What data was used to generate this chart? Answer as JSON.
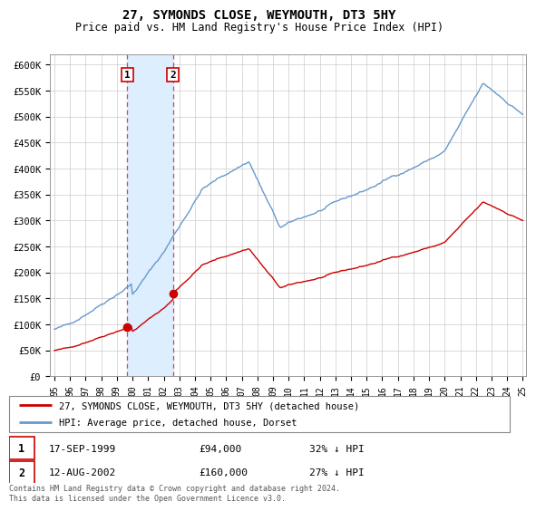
{
  "title": "27, SYMONDS CLOSE, WEYMOUTH, DT3 5HY",
  "subtitle": "Price paid vs. HM Land Registry's House Price Index (HPI)",
  "purchase1_year": 1999,
  "purchase1_month": 9,
  "purchase1_price": 94000,
  "purchase1_date_str": "17-SEP-1999",
  "purchase1_pct": "32% ↓ HPI",
  "purchase2_year": 2002,
  "purchase2_month": 8,
  "purchase2_price": 160000,
  "purchase2_date_str": "12-AUG-2002",
  "purchase2_pct": "27% ↓ HPI",
  "legend_property": "27, SYMONDS CLOSE, WEYMOUTH, DT3 5HY (detached house)",
  "legend_hpi": "HPI: Average price, detached house, Dorset",
  "footer": "Contains HM Land Registry data © Crown copyright and database right 2024.\nThis data is licensed under the Open Government Licence v3.0.",
  "property_color": "#cc0000",
  "hpi_color": "#6699cc",
  "shade_color": "#ddeeff",
  "marker_box_color": "#cc0000",
  "background_color": "#ffffff",
  "grid_color": "#cccccc",
  "yticks": [
    0,
    50000,
    100000,
    150000,
    200000,
    250000,
    300000,
    350000,
    400000,
    450000,
    500000,
    550000,
    600000
  ],
  "ylabels": [
    "£0",
    "£50K",
    "£100K",
    "£150K",
    "£200K",
    "£250K",
    "£300K",
    "£350K",
    "£400K",
    "£450K",
    "£500K",
    "£550K",
    "£600K"
  ]
}
